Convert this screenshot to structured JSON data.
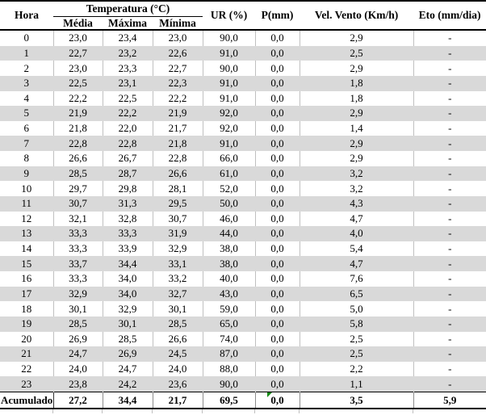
{
  "table": {
    "header": {
      "hora": "Hora",
      "temperatura_group": "Temperatura (°C)",
      "temp_sub": [
        "Média",
        "Máxima",
        "Mínima"
      ],
      "ur": "UR (%)",
      "p": "P(mm)",
      "vel_vento": "Vel. Vento (Km/h)",
      "eto": "Eto (mm/dia)"
    },
    "columns": [
      "hora",
      "media",
      "maxima",
      "minima",
      "ur",
      "p",
      "vel-vento",
      "eto"
    ],
    "rows": [
      [
        "0",
        "23,0",
        "23,4",
        "23,0",
        "90,0",
        "0,0",
        "2,9",
        "-"
      ],
      [
        "1",
        "22,7",
        "23,2",
        "22,6",
        "91,0",
        "0,0",
        "2,5",
        "-"
      ],
      [
        "2",
        "23,0",
        "23,3",
        "22,7",
        "90,0",
        "0,0",
        "2,9",
        "-"
      ],
      [
        "3",
        "22,5",
        "23,1",
        "22,3",
        "91,0",
        "0,0",
        "1,8",
        "-"
      ],
      [
        "4",
        "22,2",
        "22,5",
        "22,2",
        "91,0",
        "0,0",
        "1,8",
        "-"
      ],
      [
        "5",
        "21,9",
        "22,2",
        "21,9",
        "92,0",
        "0,0",
        "2,9",
        "-"
      ],
      [
        "6",
        "21,8",
        "22,0",
        "21,7",
        "92,0",
        "0,0",
        "1,4",
        "-"
      ],
      [
        "7",
        "22,8",
        "22,8",
        "21,8",
        "91,0",
        "0,0",
        "2,9",
        "-"
      ],
      [
        "8",
        "26,6",
        "26,7",
        "22,8",
        "66,0",
        "0,0",
        "2,9",
        "-"
      ],
      [
        "9",
        "28,5",
        "28,7",
        "26,6",
        "61,0",
        "0,0",
        "3,2",
        "-"
      ],
      [
        "10",
        "29,7",
        "29,8",
        "28,1",
        "52,0",
        "0,0",
        "3,2",
        "-"
      ],
      [
        "11",
        "30,7",
        "31,3",
        "29,5",
        "50,0",
        "0,0",
        "4,3",
        "-"
      ],
      [
        "12",
        "32,1",
        "32,8",
        "30,7",
        "46,0",
        "0,0",
        "4,7",
        "-"
      ],
      [
        "13",
        "33,3",
        "33,3",
        "31,9",
        "44,0",
        "0,0",
        "4,0",
        "-"
      ],
      [
        "14",
        "33,3",
        "33,9",
        "32,9",
        "38,0",
        "0,0",
        "5,4",
        "-"
      ],
      [
        "15",
        "33,7",
        "34,4",
        "33,1",
        "38,0",
        "0,0",
        "4,7",
        "-"
      ],
      [
        "16",
        "33,3",
        "34,0",
        "33,2",
        "40,0",
        "0,0",
        "7,6",
        "-"
      ],
      [
        "17",
        "32,9",
        "34,0",
        "32,7",
        "43,0",
        "0,0",
        "6,5",
        "-"
      ],
      [
        "18",
        "30,1",
        "32,9",
        "30,1",
        "59,0",
        "0,0",
        "5,0",
        "-"
      ],
      [
        "19",
        "28,5",
        "30,1",
        "28,5",
        "65,0",
        "0,0",
        "5,8",
        "-"
      ],
      [
        "20",
        "26,9",
        "28,5",
        "26,6",
        "74,0",
        "0,0",
        "2,5",
        "-"
      ],
      [
        "21",
        "24,7",
        "26,9",
        "24,5",
        "87,0",
        "0,0",
        "2,5",
        "-"
      ],
      [
        "22",
        "24,0",
        "24,7",
        "24,0",
        "88,0",
        "0,0",
        "2,2",
        "-"
      ],
      [
        "23",
        "23,8",
        "24,2",
        "23,6",
        "90,0",
        "0,0",
        "1,1",
        "-"
      ]
    ],
    "footer": {
      "label": "Acumulado",
      "values": [
        "27,2",
        "34,4",
        "21,7",
        "69,5",
        "0,0",
        "3,5",
        "5,9"
      ],
      "flag_cell_index": 4
    }
  },
  "icons": {
    "error_flag": "green-corner-triangle-flag"
  },
  "colors": {
    "background": "#ffffff",
    "text": "#000000",
    "stripe": "#d9d9d9",
    "grid": "#c0c0c0",
    "border": "#000000",
    "flag_green": "#128a12"
  }
}
